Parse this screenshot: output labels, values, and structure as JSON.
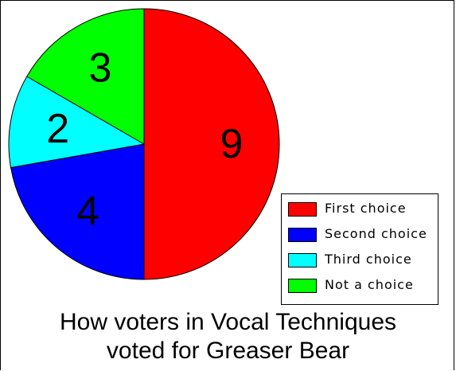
{
  "chart_data": {
    "type": "pie",
    "title_lines": [
      "How voters in Vocal Techniques",
      "voted for Greaser Bear"
    ],
    "slices": [
      {
        "label": "First choice",
        "value": 9,
        "color": "#ff0000"
      },
      {
        "label": "Second choice",
        "value": 4,
        "color": "#0000ff"
      },
      {
        "label": "Third choice",
        "value": 2,
        "color": "#00ffff"
      },
      {
        "label": "Not a choice",
        "value": 3,
        "color": "#00ff00"
      }
    ],
    "legend_position": "bottom-right"
  }
}
